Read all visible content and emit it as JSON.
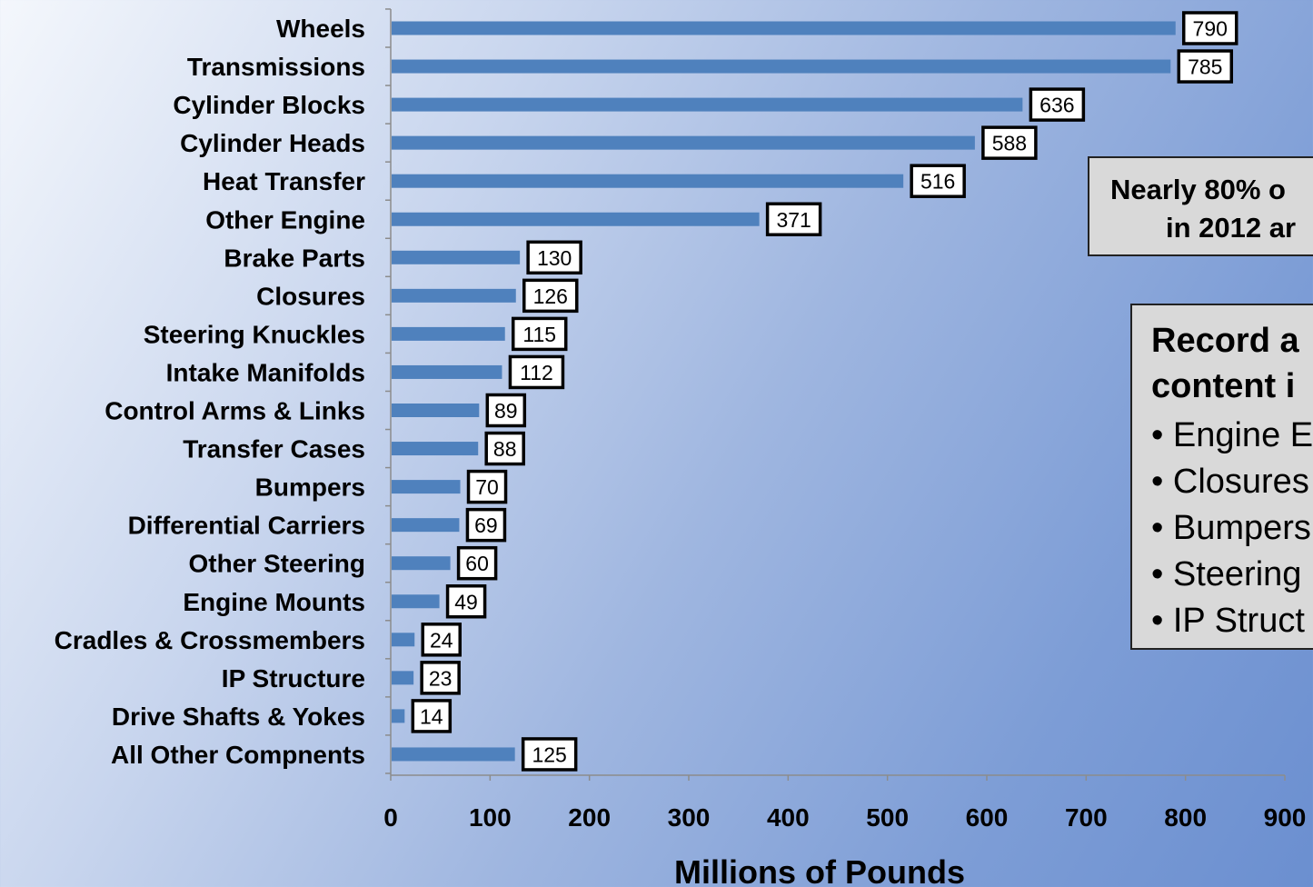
{
  "chart_data": {
    "type": "bar",
    "orientation": "horizontal",
    "categories": [
      "Wheels",
      "Transmissions",
      "Cylinder Blocks",
      "Cylinder Heads",
      "Heat Transfer",
      "Other Engine",
      "Brake Parts",
      "Closures",
      "Steering Knuckles",
      "Intake Manifolds",
      "Control Arms & Links",
      "Transfer Cases",
      "Bumpers",
      "Differential Carriers",
      "Other Steering",
      "Engine Mounts",
      "Cradles & Crossmembers",
      "IP Structure",
      "Drive Shafts & Yokes",
      "All Other Compnents"
    ],
    "values": [
      790,
      785,
      636,
      588,
      516,
      371,
      130,
      126,
      115,
      112,
      89,
      88,
      70,
      69,
      60,
      49,
      24,
      23,
      14,
      125
    ],
    "xlabel": "Millions of Pounds",
    "ylabel": "",
    "xlim": [
      0,
      900
    ],
    "xticks": [
      0,
      100,
      200,
      300,
      400,
      500,
      600,
      700,
      800,
      900
    ],
    "grid": false,
    "bar_color": "#4f81bd",
    "data_labels": true
  },
  "callouts": {
    "top": {
      "line1": "Nearly 80% o",
      "line2": "in 2012 ar"
    },
    "record": {
      "heading_line1": "Record a",
      "heading_line2": "content i",
      "items": [
        "Engine E",
        "Closures",
        "Bumpers",
        "Steering",
        "IP Struct"
      ]
    }
  }
}
